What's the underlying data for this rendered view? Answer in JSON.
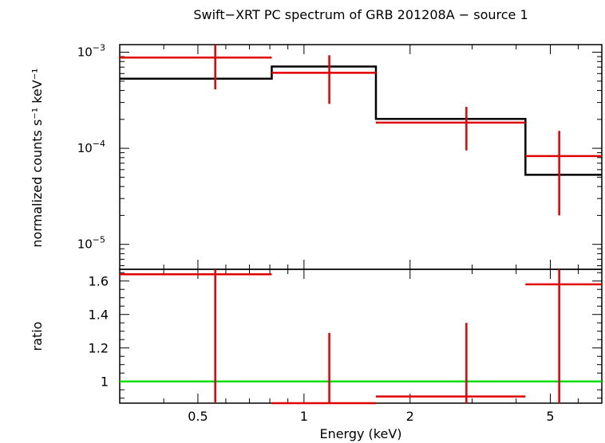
{
  "title": "Swift−XRT PC spectrum of GRB 201208A − source 1",
  "colors": {
    "data": "#e00000",
    "model": "#000000",
    "unity": "#00dd00",
    "axes": "#000000"
  },
  "chart_data": [
    {
      "type": "line",
      "panel": "spectrum",
      "ylabel": "normalized counts s⁻¹ keV⁻¹",
      "yscale": "log",
      "ylim": [
        5.5e-06,
        0.0012
      ],
      "xscale": "log",
      "xlim": [
        0.3,
        7.0
      ],
      "y_ticks": [
        {
          "value": 0.001,
          "label_base": "10",
          "label_exp": "−3"
        },
        {
          "value": 0.0001,
          "label_base": "10",
          "label_exp": "−4"
        },
        {
          "value": 1e-05,
          "label_base": "10",
          "label_exp": "−5"
        }
      ],
      "series": [
        {
          "role": "data",
          "points": [
            {
              "x": 0.56,
              "xlo": 0.3,
              "xhi": 0.81,
              "y": 0.00088,
              "ylo": 0.00041,
              "yhi": 0.00135
            },
            {
              "x": 1.18,
              "xlo": 0.81,
              "xhi": 1.6,
              "y": 0.00061,
              "ylo": 0.00029,
              "yhi": 0.00093
            },
            {
              "x": 2.89,
              "xlo": 1.6,
              "xhi": 4.25,
              "y": 0.000185,
              "ylo": 9.5e-05,
              "yhi": 0.00027
            },
            {
              "x": 5.3,
              "xlo": 4.25,
              "xhi": 7.0,
              "y": 8.3e-05,
              "ylo": 2e-05,
              "yhi": 0.000152
            }
          ]
        },
        {
          "role": "model",
          "steps": [
            {
              "xlo": 0.3,
              "xhi": 0.81,
              "y": 0.00053
            },
            {
              "xlo": 0.81,
              "xhi": 1.6,
              "y": 0.00071
            },
            {
              "xlo": 1.6,
              "xhi": 4.25,
              "y": 0.000202
            },
            {
              "xlo": 4.25,
              "xhi": 7.0,
              "y": 5.3e-05
            }
          ]
        }
      ]
    },
    {
      "type": "line",
      "panel": "ratio",
      "ylabel": "ratio",
      "xlabel": "Energy (keV)",
      "yscale": "linear",
      "ylim": [
        0.87,
        1.67
      ],
      "xscale": "log",
      "xlim": [
        0.3,
        7.0
      ],
      "y_ticks": [
        {
          "value": 1.0,
          "label": "1"
        },
        {
          "value": 1.2,
          "label": "1.2"
        },
        {
          "value": 1.4,
          "label": "1.4"
        },
        {
          "value": 1.6,
          "label": "1.6"
        }
      ],
      "x_ticks": [
        {
          "value": 0.5,
          "label": "0.5"
        },
        {
          "value": 1,
          "label": "1"
        },
        {
          "value": 2,
          "label": "2"
        },
        {
          "value": 5,
          "label": "5"
        }
      ],
      "unity_line": 1.0,
      "series": [
        {
          "role": "data",
          "points": [
            {
              "x": 0.56,
              "xlo": 0.3,
              "xhi": 0.81,
              "y": 1.64,
              "ylo": 0.87,
              "yhi": 1.67
            },
            {
              "x": 1.18,
              "xlo": 0.81,
              "xhi": 1.6,
              "y": 0.87,
              "ylo": 0.87,
              "yhi": 1.29
            },
            {
              "x": 2.89,
              "xlo": 1.6,
              "xhi": 4.25,
              "y": 0.91,
              "ylo": 0.87,
              "yhi": 1.35
            },
            {
              "x": 5.3,
              "xlo": 4.25,
              "xhi": 7.0,
              "y": 1.58,
              "ylo": 0.87,
              "yhi": 1.67
            }
          ]
        }
      ]
    }
  ]
}
